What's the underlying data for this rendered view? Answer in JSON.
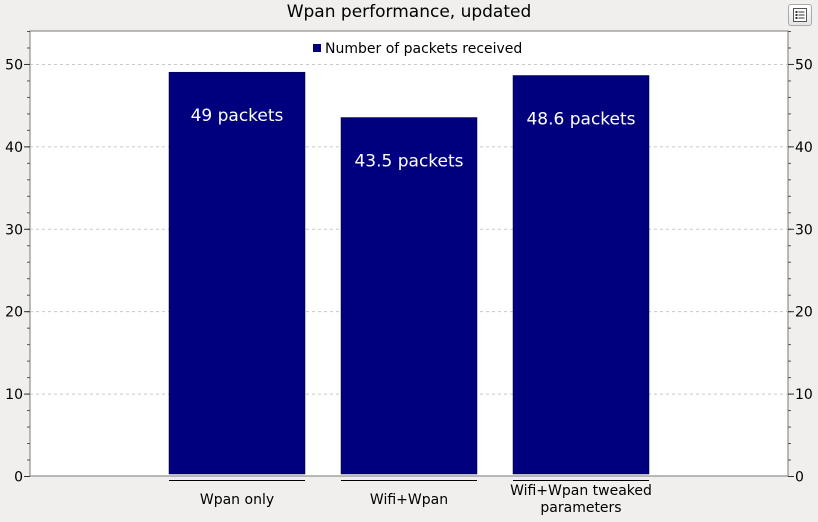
{
  "chart_data": {
    "type": "bar",
    "title": "Wpan performance, updated",
    "categories": [
      "Wpan only",
      "Wifi+Wpan",
      "Wifi+Wpan tweaked parameters"
    ],
    "category_label_lines": [
      [
        "Wpan only"
      ],
      [
        "Wifi+Wpan"
      ],
      [
        "Wifi+Wpan tweaked",
        "parameters"
      ]
    ],
    "series": [
      {
        "name": "Number of packets received",
        "values": [
          49,
          43.5,
          48.6
        ],
        "data_labels": [
          "49 packets",
          "43.5 packets",
          "48.6 packets"
        ],
        "color": "#00007f"
      }
    ],
    "xlabel": "",
    "ylabel": "",
    "ylim": [
      0,
      54
    ],
    "yticks": [
      0,
      10,
      20,
      30,
      40,
      50
    ],
    "ytick_labels": [
      "0",
      "10",
      "20",
      "30",
      "40",
      "50"
    ],
    "secondary_y_axis": true,
    "grid": true,
    "legend": "top-center"
  },
  "toolbar": {
    "legend_toggle_icon": "list-icon"
  }
}
